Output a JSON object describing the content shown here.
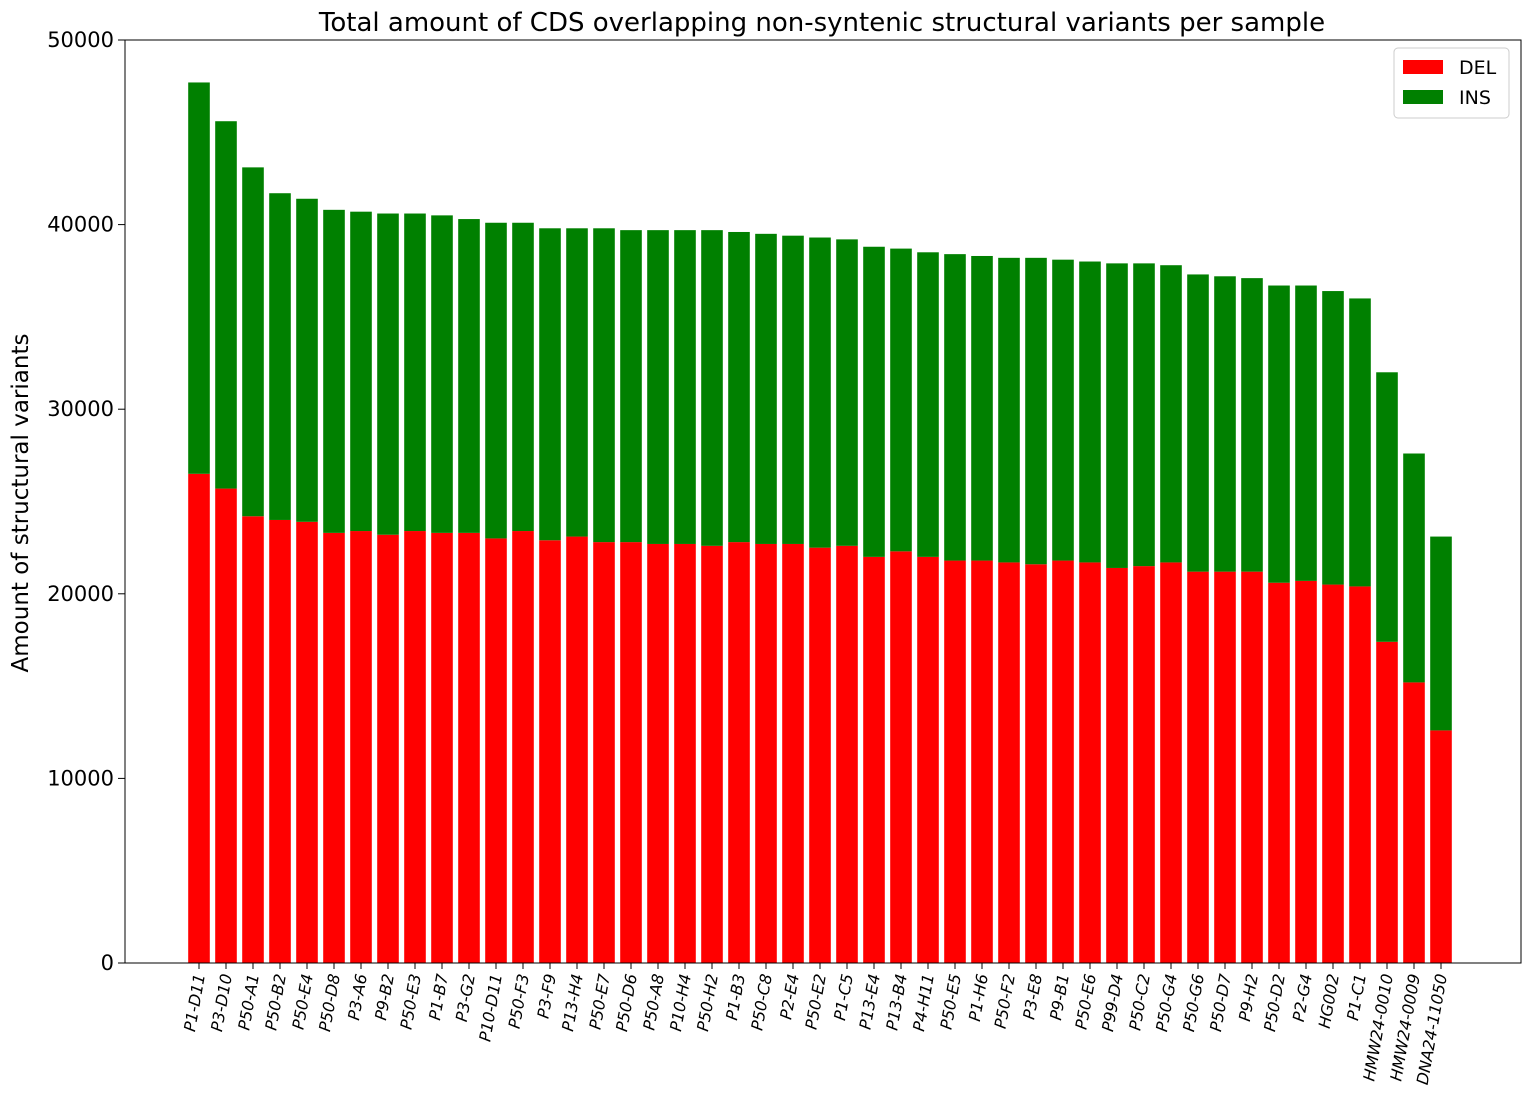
{
  "chart_data": {
    "type": "bar",
    "stacked": true,
    "title": "Total amount of CDS overlapping non-syntenic structural variants per sample",
    "xlabel": "",
    "ylabel": "Amount of structural variants",
    "ylim": [
      0,
      50000
    ],
    "yticks": [
      0,
      10000,
      20000,
      30000,
      40000,
      50000
    ],
    "grid": false,
    "legend_position": "top-right",
    "categories": [
      "P1-D11",
      "P3-D10",
      "P50-A1",
      "P50-B2",
      "P50-E4",
      "P50-D8",
      "P3-A6",
      "P9-B2",
      "P50-E3",
      "P1-B7",
      "P3-G2",
      "P10-D11",
      "P50-F3",
      "P3-F9",
      "P13-H4",
      "P50-E7",
      "P50-D6",
      "P50-A8",
      "P10-H4",
      "P50-H2",
      "P1-B3",
      "P50-C8",
      "P2-E4",
      "P50-E2",
      "P1-C5",
      "P13-E4",
      "P13-B4",
      "P4-H11",
      "P50-E5",
      "P1-H6",
      "P50-F2",
      "P3-E8",
      "P9-B1",
      "P50-E6",
      "P99-D4",
      "P50-C2",
      "P50-G4",
      "P50-G6",
      "P50-D7",
      "P9-H2",
      "P50-D2",
      "P2-G4",
      "HG002",
      "P1-C1",
      "HMW24-0010",
      "HMW24-0009",
      "DNA24-11050"
    ],
    "series": [
      {
        "name": "DEL",
        "color": "#ff0000",
        "values": [
          26500,
          25700,
          24200,
          24000,
          23900,
          23300,
          23400,
          23200,
          23400,
          23300,
          23300,
          23000,
          23400,
          22900,
          23100,
          22800,
          22800,
          22700,
          22700,
          22600,
          22800,
          22700,
          22700,
          22500,
          22600,
          22000,
          22300,
          22000,
          21800,
          21800,
          21700,
          21600,
          21800,
          21700,
          21400,
          21500,
          21700,
          21200,
          21200,
          21200,
          20600,
          20700,
          20500,
          20400,
          17400,
          15200,
          12600
        ]
      },
      {
        "name": "INS",
        "color": "#008000",
        "values": [
          21200,
          19900,
          18900,
          17700,
          17500,
          17500,
          17300,
          17400,
          17200,
          17200,
          17000,
          17100,
          16700,
          16900,
          16700,
          17000,
          16900,
          17000,
          17000,
          17100,
          16800,
          16800,
          16700,
          16800,
          16600,
          16800,
          16400,
          16500,
          16600,
          16500,
          16500,
          16600,
          16300,
          16300,
          16500,
          16400,
          16100,
          16100,
          16000,
          15900,
          16100,
          16000,
          15900,
          15600,
          14600,
          12400,
          10500
        ]
      }
    ]
  }
}
